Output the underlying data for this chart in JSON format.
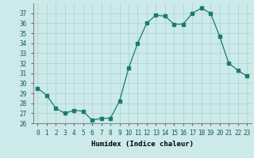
{
  "x": [
    0,
    1,
    2,
    3,
    4,
    5,
    6,
    7,
    8,
    9,
    10,
    11,
    12,
    13,
    14,
    15,
    16,
    17,
    18,
    19,
    20,
    21,
    22,
    23
  ],
  "y": [
    29.5,
    28.8,
    27.5,
    27.0,
    27.3,
    27.2,
    26.3,
    26.5,
    26.5,
    28.2,
    31.5,
    34.0,
    36.0,
    36.8,
    36.7,
    35.9,
    35.9,
    37.0,
    37.5,
    37.0,
    34.7,
    32.0,
    31.3,
    30.7
  ],
  "line_color": "#1a7a6e",
  "marker": "s",
  "marker_size": 2.5,
  "bg_color": "#cceaea",
  "grid_color": "#aacfcf",
  "xlabel": "Humidex (Indice chaleur)",
  "xlim": [
    -0.5,
    23.5
  ],
  "ylim": [
    26,
    38
  ],
  "yticks": [
    26,
    27,
    28,
    29,
    30,
    31,
    32,
    33,
    34,
    35,
    36,
    37
  ],
  "xticks": [
    0,
    1,
    2,
    3,
    4,
    5,
    6,
    7,
    8,
    9,
    10,
    11,
    12,
    13,
    14,
    15,
    16,
    17,
    18,
    19,
    20,
    21,
    22,
    23
  ],
  "tick_fontsize": 5.5,
  "label_fontsize": 6.5
}
